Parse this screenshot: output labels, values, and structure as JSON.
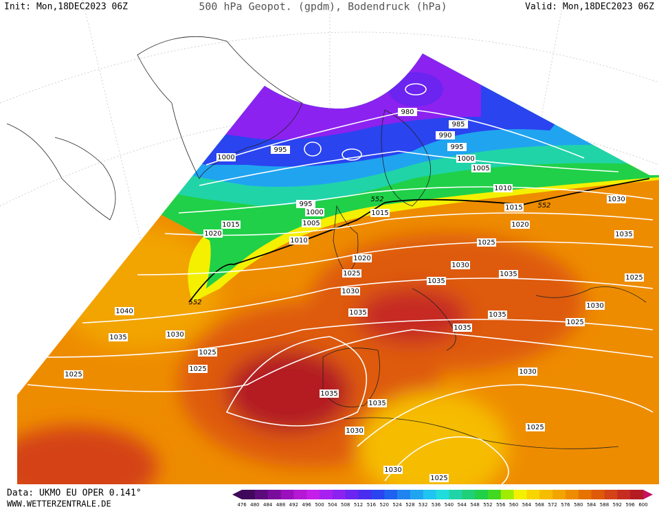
{
  "header": {
    "init": "Init: Mon,18DEC2023 06Z",
    "title": "500 hPa Geopot. (gpdm), Bodendruck (hPa)",
    "valid": "Valid: Mon,18DEC2023 06Z"
  },
  "footer": {
    "data": "Data: UKMO EU OPER 0.141°",
    "url": "WWW.WETTERZENTRALE.DE"
  },
  "colorbar": {
    "labels": [
      476,
      480,
      484,
      488,
      492,
      496,
      500,
      504,
      508,
      512,
      516,
      520,
      524,
      528,
      532,
      536,
      540,
      544,
      548,
      552,
      556,
      560,
      564,
      568,
      572,
      576,
      580,
      584,
      588,
      592,
      596,
      600
    ],
    "colors": [
      "#40085a",
      "#5c0a7c",
      "#7a0c9c",
      "#9a10bc",
      "#b418d4",
      "#c41ee8",
      "#a820f0",
      "#8c22f0",
      "#6c24f0",
      "#4a2cf0",
      "#2a44f0",
      "#2062f0",
      "#2084f0",
      "#20a4f0",
      "#20c4f0",
      "#20dcdc",
      "#20d4a8",
      "#20d078",
      "#20d048",
      "#40d820",
      "#a0ec00",
      "#f4f000",
      "#f8d400",
      "#f6bc00",
      "#f2a400",
      "#ee8c00",
      "#e67200",
      "#de5a08",
      "#d44218",
      "#c62c20",
      "#b41c24"
    ]
  },
  "map": {
    "pressure_labels": [
      1000,
      995,
      980,
      985,
      990,
      995,
      1000,
      1005,
      1010,
      995,
      1000,
      1005,
      1015,
      1020,
      1010,
      1015,
      1015,
      1030,
      1020,
      1025,
      1035,
      1020,
      1025,
      1030,
      1035,
      1025,
      1035,
      1030,
      1030,
      1035,
      1035,
      1025,
      1040,
      1035,
      1030,
      1035,
      1025,
      1025,
      1025,
      1030,
      1035,
      1035,
      1030,
      1025,
      1030,
      1025
    ],
    "geopot_labels": [
      552,
      552,
      552
    ]
  }
}
